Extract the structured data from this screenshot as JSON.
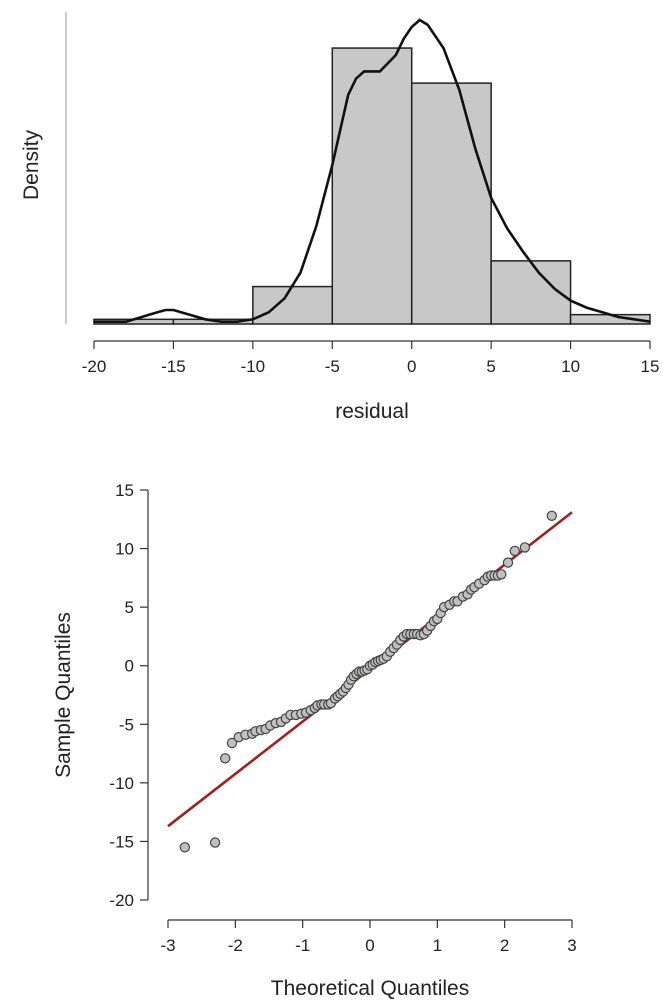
{
  "colors": {
    "bar_fill": "#c8c8c8",
    "bar_stroke": "#222222",
    "density_line": "#111111",
    "point_fill": "#c0c0c0",
    "point_stroke": "#444444",
    "reference_line": "#a51d1d",
    "axis": "#333333"
  },
  "chart_data": [
    {
      "type": "bar",
      "subtype": "histogram-with-density",
      "title": "",
      "xlabel": "residual",
      "ylabel": "Density",
      "xlim": [
        -20,
        15
      ],
      "ylim": [
        0,
        0.13
      ],
      "x_ticks": [
        -20,
        -15,
        -10,
        -5,
        0,
        5,
        10,
        15
      ],
      "y_ticks_shown": false,
      "grid": false,
      "bins": [
        {
          "start": -20,
          "end": -15,
          "value": 0.002
        },
        {
          "start": -15,
          "end": -10,
          "value": 0.002
        },
        {
          "start": -10,
          "end": -5,
          "value": 0.016
        },
        {
          "start": -5,
          "end": 0,
          "value": 0.118
        },
        {
          "start": 0,
          "end": 5,
          "value": 0.103
        },
        {
          "start": 5,
          "end": 10,
          "value": 0.027
        },
        {
          "start": 10,
          "end": 15,
          "value": 0.004
        }
      ],
      "density_curve": {
        "x": [
          -20,
          -18,
          -17,
          -16,
          -15.5,
          -15,
          -14,
          -13,
          -12,
          -11,
          -10,
          -9,
          -8,
          -7,
          -6,
          -5,
          -4,
          -3.5,
          -3,
          -2,
          -1,
          -0.5,
          0,
          0.5,
          1,
          2,
          3,
          4,
          5,
          6,
          7,
          8,
          9,
          10,
          11,
          12,
          13,
          14,
          15
        ],
        "y": [
          0.001,
          0.001,
          0.003,
          0.005,
          0.006,
          0.006,
          0.004,
          0.002,
          0.001,
          0.001,
          0.002,
          0.005,
          0.011,
          0.022,
          0.042,
          0.068,
          0.098,
          0.105,
          0.108,
          0.108,
          0.115,
          0.122,
          0.127,
          0.13,
          0.128,
          0.118,
          0.1,
          0.075,
          0.054,
          0.041,
          0.031,
          0.022,
          0.015,
          0.01,
          0.007,
          0.005,
          0.003,
          0.002,
          0.001
        ]
      }
    },
    {
      "type": "scatter",
      "subtype": "qq-plot",
      "title": "",
      "xlabel": "Theoretical Quantiles",
      "ylabel": "Sample Quantiles",
      "xlim": [
        -3,
        3
      ],
      "ylim": [
        -20,
        15
      ],
      "x_ticks": [
        -3,
        -2,
        -1,
        0,
        1,
        2,
        3
      ],
      "y_ticks": [
        15,
        10,
        5,
        0,
        -5,
        -10,
        -15,
        -20
      ],
      "grid": false,
      "reference_line": {
        "x": [
          -3,
          3
        ],
        "y": [
          -13.7,
          13.1
        ]
      },
      "points": {
        "x": [
          -2.75,
          -2.3,
          -2.15,
          -2.05,
          -1.95,
          -1.85,
          -1.75,
          -1.7,
          -1.62,
          -1.55,
          -1.48,
          -1.4,
          -1.32,
          -1.25,
          -1.18,
          -1.1,
          -1.02,
          -0.95,
          -0.88,
          -0.82,
          -0.78,
          -0.72,
          -0.68,
          -0.62,
          -0.58,
          -0.52,
          -0.48,
          -0.44,
          -0.4,
          -0.36,
          -0.32,
          -0.28,
          -0.24,
          -0.2,
          -0.16,
          -0.12,
          -0.08,
          -0.04,
          0.0,
          0.04,
          0.08,
          0.12,
          0.16,
          0.2,
          0.25,
          0.3,
          0.35,
          0.4,
          0.45,
          0.5,
          0.55,
          0.6,
          0.65,
          0.7,
          0.75,
          0.8,
          0.85,
          0.9,
          0.95,
          1.0,
          1.05,
          1.1,
          1.18,
          1.25,
          1.3,
          1.38,
          1.45,
          1.5,
          1.55,
          1.62,
          1.7,
          1.75,
          1.8,
          1.85,
          1.9,
          1.95,
          2.05,
          2.15,
          2.3,
          2.7
        ],
        "y": [
          -15.5,
          -15.1,
          -7.9,
          -6.6,
          -6.1,
          -5.9,
          -5.8,
          -5.6,
          -5.5,
          -5.4,
          -5.1,
          -4.9,
          -4.8,
          -4.5,
          -4.2,
          -4.2,
          -4.1,
          -4.0,
          -3.8,
          -3.6,
          -3.4,
          -3.3,
          -3.3,
          -3.3,
          -3.2,
          -2.8,
          -2.6,
          -2.4,
          -2.2,
          -1.9,
          -1.6,
          -1.2,
          -0.9,
          -0.7,
          -0.5,
          -0.5,
          -0.4,
          -0.3,
          0.0,
          0.1,
          0.3,
          0.4,
          0.5,
          0.6,
          0.8,
          1.2,
          1.5,
          1.8,
          2.2,
          2.5,
          2.7,
          2.7,
          2.7,
          2.7,
          2.6,
          2.7,
          3.0,
          3.4,
          3.8,
          4.0,
          4.5,
          5.0,
          5.2,
          5.5,
          5.5,
          5.9,
          6.1,
          6.5,
          6.7,
          7.0,
          7.3,
          7.6,
          7.7,
          7.7,
          7.7,
          7.8,
          8.8,
          9.8,
          10.1,
          12.8
        ]
      }
    }
  ]
}
